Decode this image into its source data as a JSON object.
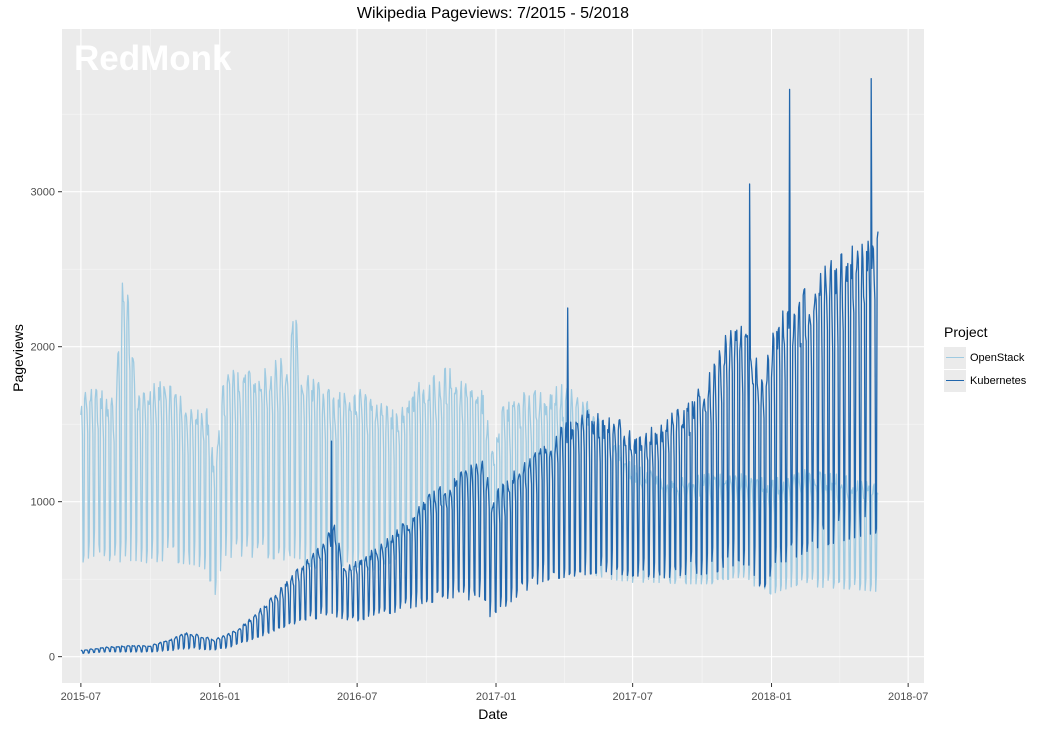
{
  "chart_data": {
    "type": "line",
    "title": "Wikipedia Pageviews: 7/2015 - 5/2018",
    "xlabel": "Date",
    "ylabel": "Pageviews",
    "watermark": "RedMonk",
    "legend_title": "Project",
    "legend_position": "right",
    "grid": true,
    "xlim": [
      "2015-06-06",
      "2018-07-22"
    ],
    "ylim": [
      -170,
      4050
    ],
    "x_ticks": [
      "2015-07",
      "2016-01",
      "2016-07",
      "2017-01",
      "2017-07",
      "2018-01",
      "2018-07"
    ],
    "y_ticks": [
      0,
      1000,
      2000,
      3000
    ],
    "series": [
      {
        "name": "OpenStack",
        "color": "#9ecae1",
        "dates": [
          "2015-07-01",
          "2015-07-15",
          "2015-08-01",
          "2015-08-15",
          "2015-08-27",
          "2015-09-15",
          "2015-10-01",
          "2015-10-15",
          "2015-11-01",
          "2015-11-15",
          "2015-12-01",
          "2015-12-15",
          "2015-12-25",
          "2016-01-05",
          "2016-01-15",
          "2016-02-01",
          "2016-02-15",
          "2016-03-01",
          "2016-03-15",
          "2016-04-01",
          "2016-04-10",
          "2016-04-15",
          "2016-05-01",
          "2016-05-15",
          "2016-06-01",
          "2016-06-15",
          "2016-07-01",
          "2016-07-15",
          "2016-08-01",
          "2016-08-15",
          "2016-09-01",
          "2016-09-15",
          "2016-10-01",
          "2016-10-15",
          "2016-11-01",
          "2016-11-15",
          "2016-12-01",
          "2016-12-15",
          "2016-12-26",
          "2017-01-10",
          "2017-02-01",
          "2017-03-01",
          "2017-04-01",
          "2017-05-01",
          "2017-06-01",
          "2017-07-01",
          "2017-08-01",
          "2017-09-01",
          "2017-10-01",
          "2017-11-01",
          "2017-12-01",
          "2017-12-20",
          "2018-01-01",
          "2018-02-01",
          "2018-03-01",
          "2018-04-01",
          "2018-05-01",
          "2018-05-22"
        ],
        "peak": [
          1640,
          1680,
          1660,
          1600,
          2470,
          1640,
          1700,
          1720,
          1680,
          1600,
          1580,
          1550,
          1200,
          1720,
          1780,
          1820,
          1760,
          1800,
          1850,
          1900,
          2250,
          1800,
          1740,
          1700,
          1640,
          1660,
          1680,
          1640,
          1600,
          1540,
          1560,
          1700,
          1740,
          1760,
          1820,
          1720,
          1680,
          1680,
          1300,
          1560,
          1640,
          1680,
          1700,
          1600,
          1400,
          1200,
          1160,
          1120,
          1140,
          1160,
          1140,
          1120,
          1100,
          1180,
          1160,
          1140,
          1120,
          1100
        ],
        "trough": [
          600,
          650,
          640,
          600,
          620,
          620,
          600,
          620,
          610,
          600,
          590,
          560,
          380,
          620,
          640,
          650,
          640,
          640,
          630,
          620,
          640,
          600,
          580,
          560,
          560,
          560,
          560,
          560,
          560,
          550,
          540,
          550,
          560,
          570,
          560,
          550,
          530,
          500,
          430,
          520,
          540,
          560,
          560,
          540,
          500,
          480,
          480,
          470,
          470,
          470,
          460,
          450,
          400,
          460,
          450,
          440,
          430,
          420
        ]
      },
      {
        "name": "Kubernetes",
        "color": "#2166ac",
        "dates": [
          "2015-07-01",
          "2015-08-01",
          "2015-09-01",
          "2015-10-01",
          "2015-11-01",
          "2015-11-15",
          "2015-12-01",
          "2015-12-25",
          "2016-01-15",
          "2016-02-01",
          "2016-02-15",
          "2016-03-01",
          "2016-03-15",
          "2016-04-01",
          "2016-04-15",
          "2016-05-01",
          "2016-05-15",
          "2016-06-01",
          "2016-06-15",
          "2016-07-01",
          "2016-07-15",
          "2016-08-01",
          "2016-08-15",
          "2016-09-01",
          "2016-09-15",
          "2016-10-01",
          "2016-10-15",
          "2016-11-01",
          "2016-11-15",
          "2016-12-01",
          "2016-12-15",
          "2016-12-26",
          "2017-01-15",
          "2017-02-01",
          "2017-02-15",
          "2017-03-01",
          "2017-03-15",
          "2017-04-01",
          "2017-04-15",
          "2017-05-01",
          "2017-05-15",
          "2017-06-01",
          "2017-06-15",
          "2017-07-01",
          "2017-07-15",
          "2017-08-01",
          "2017-08-15",
          "2017-09-01",
          "2017-09-15",
          "2017-10-01",
          "2017-10-15",
          "2017-11-01",
          "2017-11-15",
          "2017-12-01",
          "2017-12-20",
          "2018-01-01",
          "2018-01-15",
          "2018-02-01",
          "2018-02-15",
          "2018-03-01",
          "2018-03-15",
          "2018-04-01",
          "2018-04-15",
          "2018-05-01",
          "2018-05-22"
        ],
        "peak": [
          40,
          60,
          70,
          70,
          120,
          150,
          140,
          110,
          150,
          200,
          260,
          330,
          400,
          480,
          560,
          640,
          720,
          820,
          560,
          600,
          650,
          700,
          760,
          850,
          900,
          1000,
          1050,
          1100,
          1150,
          1200,
          1250,
          1000,
          1100,
          1200,
          1250,
          1300,
          1380,
          1450,
          1500,
          1550,
          1520,
          1500,
          1480,
          1400,
          1420,
          1450,
          1500,
          1550,
          1600,
          1700,
          1800,
          2000,
          2100,
          2100,
          1700,
          2000,
          2150,
          2200,
          2300,
          2400,
          2450,
          2500,
          2550,
          2600,
          2650
        ],
        "trough": [
          20,
          30,
          30,
          30,
          40,
          50,
          50,
          40,
          60,
          90,
          110,
          140,
          170,
          200,
          220,
          240,
          250,
          260,
          240,
          230,
          240,
          260,
          280,
          300,
          320,
          340,
          360,
          380,
          380,
          360,
          340,
          240,
          330,
          400,
          440,
          480,
          500,
          510,
          520,
          530,
          540,
          530,
          530,
          520,
          520,
          510,
          510,
          520,
          520,
          530,
          540,
          560,
          580,
          600,
          420,
          540,
          600,
          640,
          660,
          700,
          720,
          740,
          760,
          780,
          800
        ],
        "annotated_peaks": [
          {
            "date": "2016-05-28",
            "value": 1390
          },
          {
            "date": "2017-04-06",
            "value": 2250
          },
          {
            "date": "2017-12-03",
            "value": 3050
          },
          {
            "date": "2018-01-25",
            "value": 3660
          },
          {
            "date": "2018-05-13",
            "value": 3730
          }
        ]
      }
    ]
  }
}
